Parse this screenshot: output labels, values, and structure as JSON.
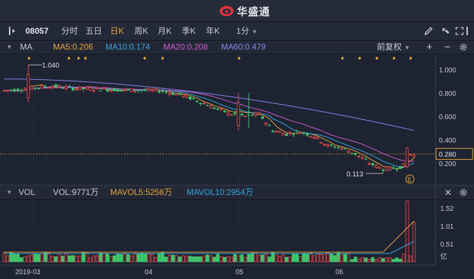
{
  "window": {
    "brand": "华盛通",
    "brand_color": "#e8323c"
  },
  "toolbar": {
    "stock_code": "08057",
    "periods": [
      "分时",
      "五日",
      "日K",
      "周K",
      "月K",
      "季K",
      "年K"
    ],
    "active_period": "日K",
    "minute_select": "1分"
  },
  "main_indicator": {
    "name": "MA",
    "ma5": "MA5:0.206",
    "ma10": "MA10:0.174",
    "ma20": "MA20:0.208",
    "ma60": "MA60:0.479",
    "adjust": "前复权",
    "colors": {
      "ma5": "#e8a53a",
      "ma10": "#3aa7e0",
      "ma20": "#d35bd3",
      "ma60": "#8d86f0"
    }
  },
  "volume_indicator": {
    "name": "VOL",
    "vol": "VOL:9771万",
    "mavol5": "MAVOL5:5258万",
    "mavol10": "MAVOL10:2954万",
    "colors": {
      "mavol5": "#e8a53a",
      "mavol10": "#3aa7e0"
    }
  },
  "chart_data": {
    "type": "candlestick",
    "price_axis_labels": [
      "1.000",
      "0.800",
      "0.600",
      "0.400",
      "0.200"
    ],
    "current_price": "0.280",
    "high_annotation": "1.040",
    "low_annotation": "0.113",
    "event_marker": "E",
    "volume_axis_labels": [
      "1.52",
      "1.01",
      "0.51"
    ],
    "volume_unit": "亿",
    "x_axis_labels": [
      "2019-03",
      "04",
      "05",
      "06"
    ],
    "up_color": "#e84a4a",
    "down_color": "#3fc66b"
  }
}
